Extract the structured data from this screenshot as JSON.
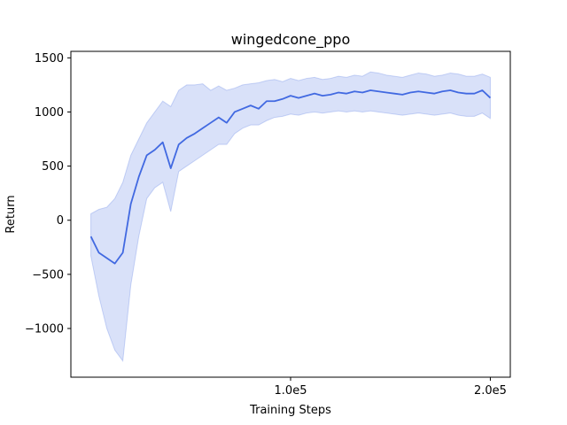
{
  "chart_data": {
    "type": "line",
    "title": "wingedcone_ppo",
    "xlabel": "Training Steps",
    "ylabel": "Return",
    "xlim": [
      -10000,
      210000
    ],
    "ylim": [
      -1450,
      1560
    ],
    "x_ticks": [
      100000,
      200000
    ],
    "x_tick_labels": [
      "1.0e5",
      "2.0e5"
    ],
    "y_ticks": [
      -1000,
      -500,
      0,
      500,
      1000,
      1500
    ],
    "y_tick_labels": [
      "−1000",
      "−500",
      "0",
      "500",
      "1000",
      "1500"
    ],
    "grid": false,
    "legend": "none",
    "series": [
      {
        "color": "#4169e1",
        "band_color": "#4169e1",
        "x": [
          0,
          4000,
          8000,
          12000,
          16000,
          20000,
          24000,
          28000,
          32000,
          36000,
          40000,
          44000,
          48000,
          52000,
          56000,
          60000,
          64000,
          68000,
          72000,
          76000,
          80000,
          84000,
          88000,
          92000,
          96000,
          100000,
          104000,
          108000,
          112000,
          116000,
          120000,
          124000,
          128000,
          132000,
          136000,
          140000,
          144000,
          148000,
          152000,
          156000,
          160000,
          164000,
          168000,
          172000,
          176000,
          180000,
          184000,
          188000,
          192000,
          196000,
          200000
        ],
        "mean": [
          -150,
          -300,
          -350,
          -400,
          -300,
          150,
          400,
          600,
          650,
          720,
          480,
          700,
          760,
          800,
          850,
          900,
          950,
          900,
          1000,
          1030,
          1060,
          1030,
          1100,
          1100,
          1120,
          1150,
          1130,
          1150,
          1170,
          1150,
          1160,
          1180,
          1170,
          1190,
          1180,
          1200,
          1190,
          1180,
          1170,
          1160,
          1180,
          1190,
          1180,
          1170,
          1190,
          1200,
          1180,
          1170,
          1170,
          1200,
          1130
        ],
        "lower": [
          -330,
          -700,
          -1000,
          -1200,
          -1300,
          -600,
          -150,
          200,
          300,
          350,
          80,
          450,
          500,
          550,
          600,
          650,
          700,
          700,
          800,
          850,
          880,
          880,
          920,
          950,
          960,
          980,
          970,
          990,
          1000,
          990,
          1000,
          1010,
          1000,
          1010,
          1000,
          1010,
          1000,
          990,
          980,
          970,
          980,
          990,
          980,
          970,
          980,
          990,
          970,
          960,
          960,
          990,
          940
        ],
        "upper": [
          60,
          100,
          120,
          200,
          350,
          600,
          750,
          900,
          1000,
          1100,
          1050,
          1200,
          1250,
          1250,
          1260,
          1200,
          1240,
          1200,
          1220,
          1250,
          1260,
          1270,
          1290,
          1300,
          1280,
          1310,
          1290,
          1310,
          1320,
          1300,
          1310,
          1330,
          1320,
          1340,
          1330,
          1370,
          1360,
          1340,
          1330,
          1320,
          1340,
          1360,
          1350,
          1330,
          1340,
          1360,
          1350,
          1330,
          1330,
          1350,
          1320
        ]
      }
    ]
  }
}
